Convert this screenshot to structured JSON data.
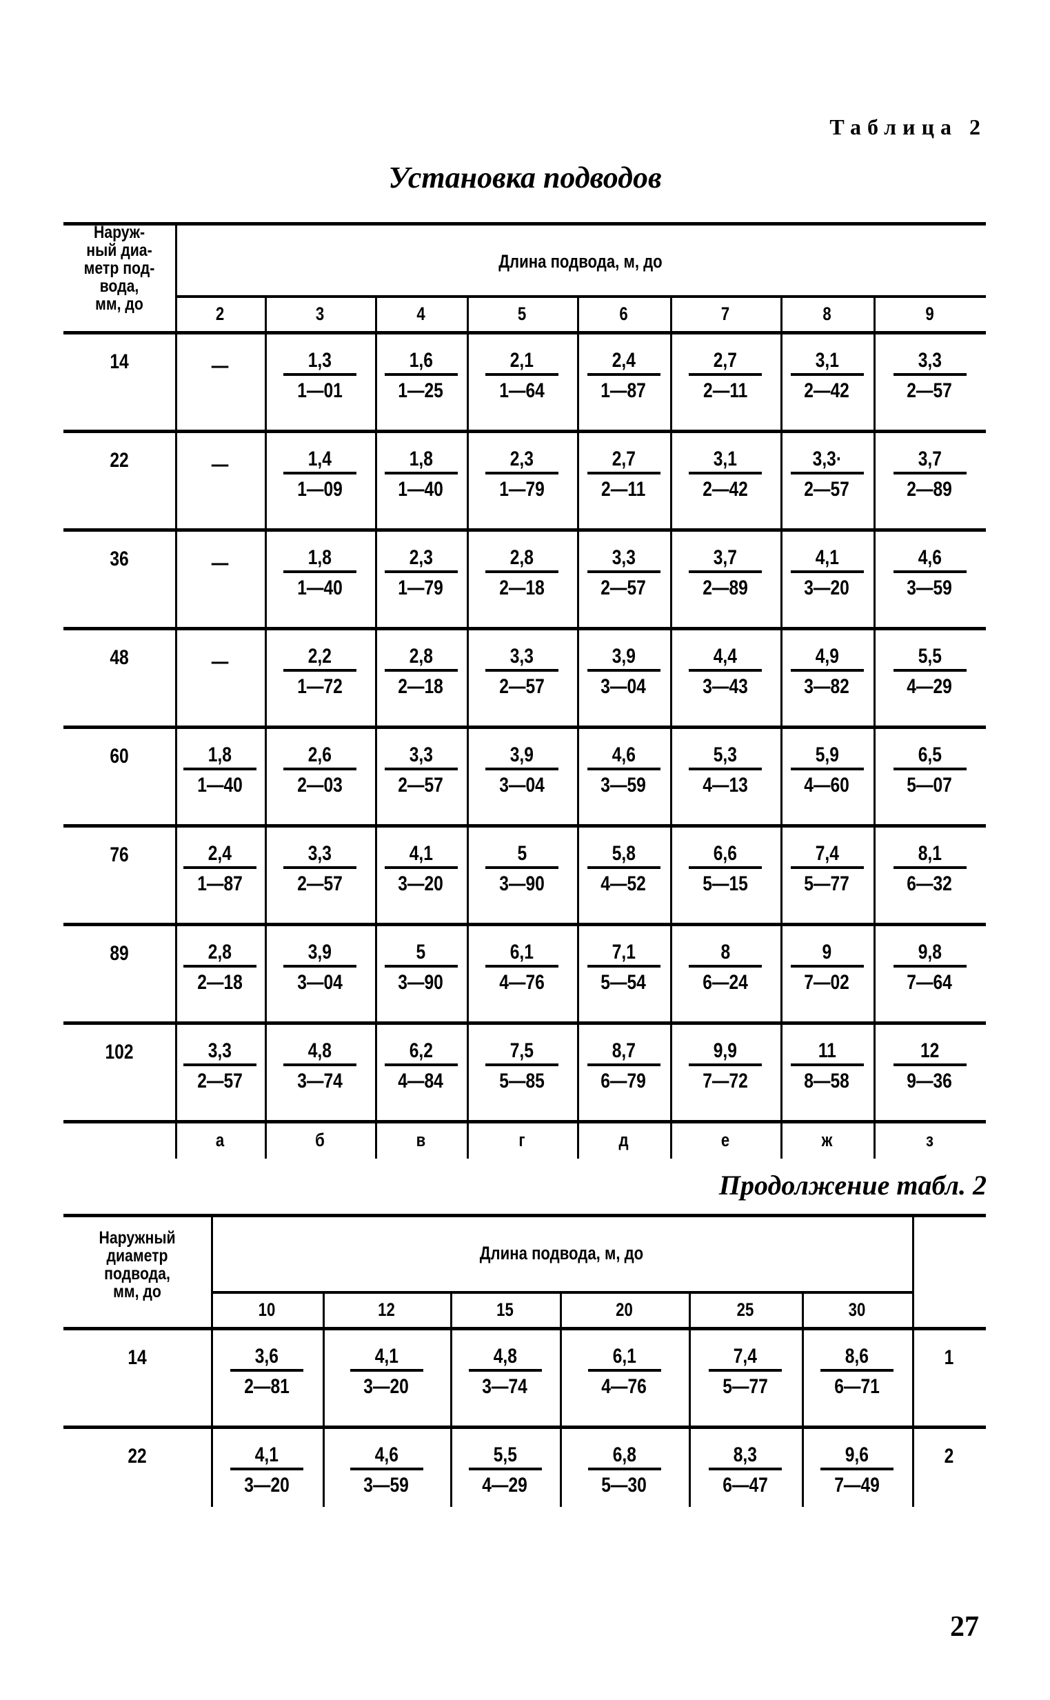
{
  "table_label": "Таблица 2",
  "title": "Установка подводов",
  "continuation_label": "Продолжение табл. 2",
  "page_number": "27",
  "table1": {
    "diameter_header": "Наруж-\nный диа-\nметр под-\nвода,\nмм, до",
    "length_header": "Длина подвода, м, до",
    "columns": [
      "2",
      "3",
      "4",
      "5",
      "6",
      "7",
      "8",
      "9"
    ],
    "rows": [
      {
        "diameter": "14",
        "cells": [
          "—",
          {
            "num": "1,3",
            "den": "1—01"
          },
          {
            "num": "1,6",
            "den": "1—25"
          },
          {
            "num": "2,1",
            "den": "1—64"
          },
          {
            "num": "2,4",
            "den": "1—87"
          },
          {
            "num": "2,7",
            "den": "2—11"
          },
          {
            "num": "3,1",
            "den": "2—42"
          },
          {
            "num": "3,3",
            "den": "2—57"
          }
        ]
      },
      {
        "diameter": "22",
        "cells": [
          "—",
          {
            "num": "1,4",
            "den": "1—09"
          },
          {
            "num": "1,8",
            "den": "1—40"
          },
          {
            "num": "2,3",
            "den": "1—79"
          },
          {
            "num": "2,7",
            "den": "2—11"
          },
          {
            "num": "3,1",
            "den": "2—42"
          },
          {
            "num": "3,3·",
            "den": "2—57"
          },
          {
            "num": "3,7",
            "den": "2—89"
          }
        ]
      },
      {
        "diameter": "36",
        "cells": [
          "—",
          {
            "num": "1,8",
            "den": "1—40"
          },
          {
            "num": "2,3",
            "den": "1—79"
          },
          {
            "num": "2,8",
            "den": "2—18"
          },
          {
            "num": "3,3",
            "den": "2—57"
          },
          {
            "num": "3,7",
            "den": "2—89"
          },
          {
            "num": "4,1",
            "den": "3—20"
          },
          {
            "num": "4,6",
            "den": "3—59"
          }
        ]
      },
      {
        "diameter": "48",
        "cells": [
          "—",
          {
            "num": "2,2",
            "den": "1—72"
          },
          {
            "num": "2,8",
            "den": "2—18"
          },
          {
            "num": "3,3",
            "den": "2—57"
          },
          {
            "num": "3,9",
            "den": "3—04"
          },
          {
            "num": "4,4",
            "den": "3—43"
          },
          {
            "num": "4,9",
            "den": "3—82"
          },
          {
            "num": "5,5",
            "den": "4—29"
          }
        ]
      },
      {
        "diameter": "60",
        "cells": [
          {
            "num": "1,8",
            "den": "1—40"
          },
          {
            "num": "2,6",
            "den": "2—03"
          },
          {
            "num": "3,3",
            "den": "2—57"
          },
          {
            "num": "3,9",
            "den": "3—04"
          },
          {
            "num": "4,6",
            "den": "3—59"
          },
          {
            "num": "5,3",
            "den": "4—13"
          },
          {
            "num": "5,9",
            "den": "4—60"
          },
          {
            "num": "6,5",
            "den": "5—07"
          }
        ]
      },
      {
        "diameter": "76",
        "cells": [
          {
            "num": "2,4",
            "den": "1—87"
          },
          {
            "num": "3,3",
            "den": "2—57"
          },
          {
            "num": "4,1",
            "den": "3—20"
          },
          {
            "num": "5",
            "den": "3—90"
          },
          {
            "num": "5,8",
            "den": "4—52"
          },
          {
            "num": "6,6",
            "den": "5—15"
          },
          {
            "num": "7,4",
            "den": "5—77"
          },
          {
            "num": "8,1",
            "den": "6—32"
          }
        ]
      },
      {
        "diameter": "89",
        "cells": [
          {
            "num": "2,8",
            "den": "2—18"
          },
          {
            "num": "3,9",
            "den": "3—04"
          },
          {
            "num": "5",
            "den": "3—90"
          },
          {
            "num": "6,1",
            "den": "4—76"
          },
          {
            "num": "7,1",
            "den": "5—54"
          },
          {
            "num": "8",
            "den": "6—24"
          },
          {
            "num": "9",
            "den": "7—02"
          },
          {
            "num": "9,8",
            "den": "7—64"
          }
        ]
      },
      {
        "diameter": "102",
        "cells": [
          {
            "num": "3,3",
            "den": "2—57"
          },
          {
            "num": "4,8",
            "den": "3—74"
          },
          {
            "num": "6,2",
            "den": "4—84"
          },
          {
            "num": "7,5",
            "den": "5—85"
          },
          {
            "num": "8,7",
            "den": "6—79"
          },
          {
            "num": "9,9",
            "den": "7—72"
          },
          {
            "num": "11",
            "den": "8—58"
          },
          {
            "num": "12",
            "den": "9—36"
          }
        ]
      }
    ],
    "footer_letters": [
      "а",
      "б",
      "в",
      "г",
      "д",
      "е",
      "ж",
      "з"
    ]
  },
  "table2": {
    "diameter_header": "Наружный\nдиаметр\nподвода,\nмм, до",
    "length_header": "Длина подвода, м, до",
    "columns": [
      "10",
      "12",
      "15",
      "20",
      "25",
      "30"
    ],
    "rows": [
      {
        "diameter": "14",
        "cells": [
          {
            "num": "3,6",
            "den": "2—81"
          },
          {
            "num": "4,1",
            "den": "3—20"
          },
          {
            "num": "4,8",
            "den": "3—74"
          },
          {
            "num": "6,1",
            "den": "4—76"
          },
          {
            "num": "7,4",
            "den": "5—77"
          },
          {
            "num": "8,6",
            "den": "6—71"
          }
        ],
        "row_label": "1"
      },
      {
        "diameter": "22",
        "cells": [
          {
            "num": "4,1",
            "den": "3—20"
          },
          {
            "num": "4,6",
            "den": "3—59"
          },
          {
            "num": "5,5",
            "den": "4—29"
          },
          {
            "num": "6,8",
            "den": "5—30"
          },
          {
            "num": "8,3",
            "den": "6—47"
          },
          {
            "num": "9,6",
            "den": "7—49"
          }
        ],
        "row_label": "2"
      }
    ]
  }
}
